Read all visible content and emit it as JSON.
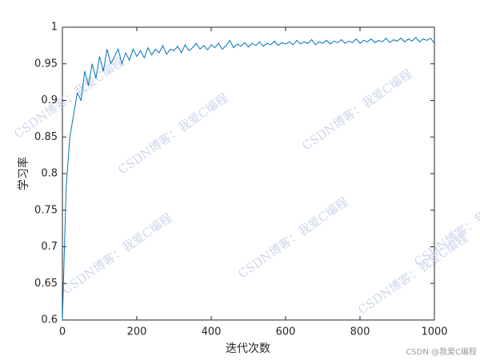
{
  "chart_data": {
    "type": "line",
    "xlabel": "迭代次数",
    "ylabel": "学习率",
    "watermark": "CSDN博客：我爱C编程",
    "footer": "CSDN @我爱C编程",
    "xlim": [
      0,
      1000
    ],
    "xticks": [
      0,
      200,
      400,
      600,
      800,
      1000
    ],
    "ylim": [
      0.6,
      1
    ],
    "yticks": [
      0.6,
      0.65,
      0.7,
      0.75,
      0.8,
      0.85,
      0.9,
      0.95,
      1
    ],
    "grid": false,
    "x": [
      0,
      10,
      20,
      30,
      40,
      50,
      60,
      70,
      80,
      90,
      100,
      110,
      120,
      130,
      140,
      150,
      160,
      170,
      180,
      190,
      200,
      210,
      220,
      230,
      240,
      250,
      260,
      270,
      280,
      290,
      300,
      310,
      320,
      330,
      340,
      350,
      360,
      370,
      380,
      390,
      400,
      410,
      420,
      430,
      440,
      450,
      460,
      470,
      480,
      490,
      500,
      510,
      520,
      530,
      540,
      550,
      560,
      570,
      580,
      590,
      600,
      610,
      620,
      630,
      640,
      650,
      660,
      670,
      680,
      690,
      700,
      710,
      720,
      730,
      740,
      750,
      760,
      770,
      780,
      790,
      800,
      810,
      820,
      830,
      840,
      850,
      860,
      870,
      880,
      890,
      900,
      910,
      920,
      930,
      940,
      950,
      960,
      970,
      980,
      990,
      1000
    ],
    "series": [
      {
        "color": "#0072bd",
        "values": [
          0.6,
          0.78,
          0.85,
          0.88,
          0.91,
          0.9,
          0.94,
          0.92,
          0.95,
          0.93,
          0.96,
          0.94,
          0.97,
          0.95,
          0.96,
          0.97,
          0.95,
          0.965,
          0.955,
          0.97,
          0.96,
          0.968,
          0.958,
          0.972,
          0.962,
          0.97,
          0.965,
          0.975,
          0.963,
          0.97,
          0.968,
          0.974,
          0.965,
          0.976,
          0.968,
          0.972,
          0.978,
          0.97,
          0.975,
          0.969,
          0.976,
          0.972,
          0.978,
          0.97,
          0.975,
          0.982,
          0.972,
          0.977,
          0.974,
          0.979,
          0.973,
          0.978,
          0.975,
          0.98,
          0.974,
          0.978,
          0.976,
          0.981,
          0.975,
          0.979,
          0.977,
          0.98,
          0.976,
          0.982,
          0.977,
          0.98,
          0.978,
          0.983,
          0.976,
          0.98,
          0.978,
          0.982,
          0.977,
          0.981,
          0.979,
          0.983,
          0.978,
          0.981,
          0.979,
          0.984,
          0.978,
          0.982,
          0.98,
          0.984,
          0.979,
          0.982,
          0.98,
          0.985,
          0.979,
          0.983,
          0.981,
          0.985,
          0.98,
          0.984,
          0.981,
          0.986,
          0.98,
          0.984,
          0.982,
          0.985,
          0.978
        ]
      }
    ]
  }
}
